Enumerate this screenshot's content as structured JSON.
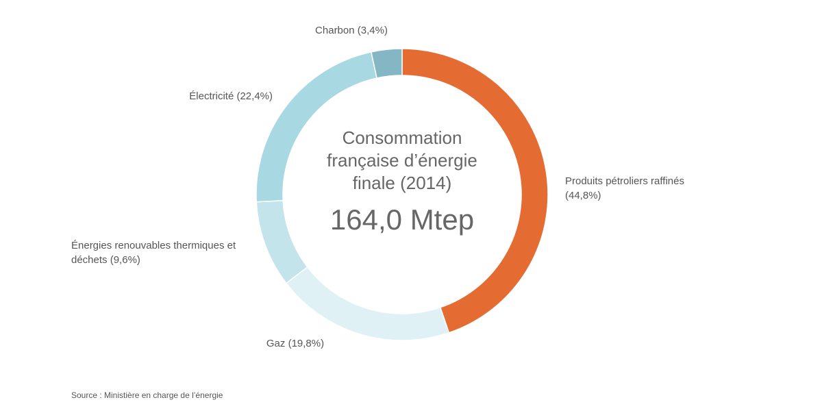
{
  "chart_data": {
    "type": "pie",
    "donut": true,
    "categories": [
      "Produits pétroliers raffinés",
      "Gaz",
      "Énergies renouvables thermiques et déchets",
      "Électricité ",
      "Charbon"
    ],
    "values": [
      44.8,
      19.8,
      9.6,
      22.4,
      3.4
    ],
    "value_labels": [
      "(44,8%)",
      "(19,8%)",
      "(9,6%)",
      "(22,4%)",
      "(3,4%)"
    ],
    "colors": [
      "#e46c33",
      "#dff1f5",
      "#c2e4ea",
      "#a8d8e2",
      "#85b6c4"
    ],
    "center_title": "Consommation française d’énergie finale (2014)",
    "total": 164.0,
    "total_label": "164,0 Mtep",
    "source": "Source : Ministière en charge de l’énergie"
  }
}
